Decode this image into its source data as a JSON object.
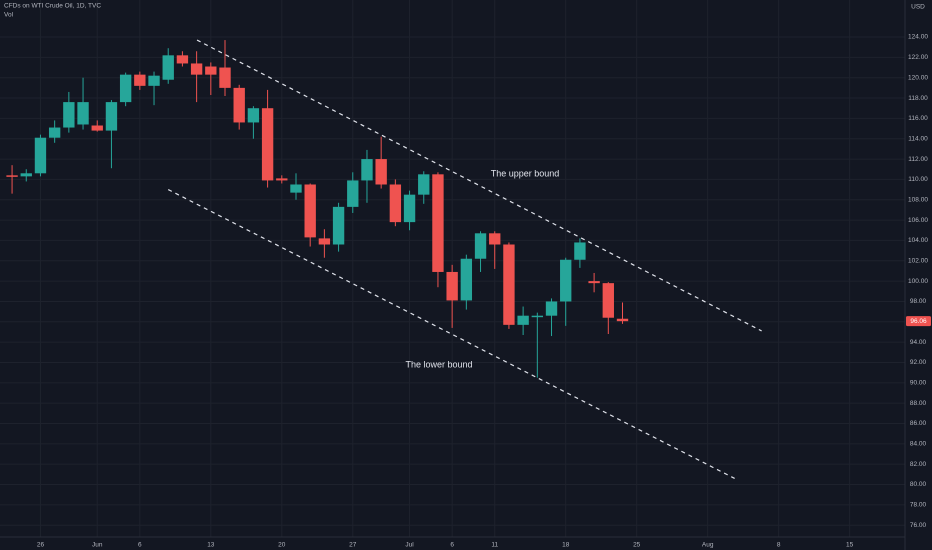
{
  "chart_data": {
    "type": "candlestick",
    "title": "CFDs on WTI Crude Oil, 1D, TVC",
    "subtitle": "Vol",
    "y_axis_label": "USD",
    "up_color": "#26a69a",
    "down_color": "#ef5350",
    "grid": true,
    "x": [
      0,
      1,
      2,
      3,
      4,
      5,
      6,
      7,
      8,
      9,
      10,
      11,
      12,
      13,
      14,
      15,
      16,
      17,
      18,
      19,
      20,
      21,
      22,
      23,
      24,
      25,
      26,
      27,
      28,
      29,
      30,
      31,
      32,
      33,
      34,
      35,
      36,
      37,
      38,
      39,
      40,
      41,
      42,
      43
    ],
    "open": [
      110.4,
      110.3,
      110.6,
      114.1,
      115.1,
      115.4,
      115.3,
      114.8,
      117.6,
      120.3,
      119.2,
      119.8,
      122.2,
      121.4,
      121.1,
      121.0,
      119.0,
      115.6,
      117.0,
      110.1,
      108.7,
      109.5,
      104.2,
      103.6,
      107.3,
      109.9,
      112.0,
      109.5,
      105.8,
      108.5,
      110.5,
      100.9,
      98.1,
      102.2,
      104.7,
      103.6,
      95.7,
      96.5,
      96.6,
      98.0,
      102.1,
      100.0,
      99.8,
      96.3
    ],
    "high": [
      111.4,
      111.0,
      114.4,
      115.8,
      118.6,
      120.0,
      115.8,
      117.8,
      120.5,
      120.6,
      120.6,
      122.9,
      122.6,
      122.6,
      121.5,
      123.7,
      119.3,
      117.2,
      118.8,
      110.4,
      110.6,
      109.6,
      105.1,
      107.7,
      110.7,
      112.9,
      114.2,
      110.0,
      108.9,
      110.8,
      110.7,
      101.6,
      102.6,
      104.9,
      104.9,
      103.8,
      97.5,
      96.9,
      98.3,
      102.3,
      104.2,
      100.8,
      99.9,
      97.9
    ],
    "low": [
      108.6,
      109.8,
      110.3,
      113.6,
      114.6,
      114.9,
      114.7,
      111.1,
      117.2,
      118.8,
      117.3,
      119.4,
      121.1,
      117.6,
      118.3,
      118.2,
      114.9,
      114.0,
      109.2,
      109.6,
      108.0,
      103.4,
      102.3,
      102.9,
      106.7,
      107.7,
      109.1,
      105.4,
      105.0,
      107.6,
      99.4,
      95.4,
      97.2,
      100.9,
      101.2,
      95.3,
      94.7,
      90.5,
      94.6,
      95.6,
      101.3,
      98.9,
      94.8,
      95.8
    ],
    "close": [
      110.3,
      110.6,
      114.1,
      115.1,
      117.6,
      117.6,
      114.8,
      117.6,
      120.3,
      119.2,
      120.2,
      122.2,
      121.4,
      120.3,
      120.3,
      119.0,
      115.6,
      117.0,
      109.9,
      109.9,
      109.5,
      104.3,
      103.6,
      107.3,
      109.9,
      112.0,
      109.5,
      105.8,
      108.5,
      110.5,
      100.9,
      98.1,
      102.2,
      104.7,
      103.6,
      95.7,
      96.6,
      96.6,
      98.0,
      102.1,
      103.8,
      99.8,
      96.4,
      96.06
    ],
    "last_price": {
      "value": 96.06,
      "label": "96.06"
    },
    "xlim": [
      -0.85,
      62.9
    ],
    "xticks": [
      {
        "value": 2,
        "label": "26"
      },
      {
        "value": 6,
        "label": "Jun"
      },
      {
        "value": 9,
        "label": "6"
      },
      {
        "value": 14,
        "label": "13"
      },
      {
        "value": 19,
        "label": "20"
      },
      {
        "value": 24,
        "label": "27"
      },
      {
        "value": 28,
        "label": "Jul"
      },
      {
        "value": 31,
        "label": "6"
      },
      {
        "value": 34,
        "label": "11"
      },
      {
        "value": 39,
        "label": "18"
      },
      {
        "value": 44,
        "label": "25"
      },
      {
        "value": 49,
        "label": "Aug"
      },
      {
        "value": 54,
        "label": "8"
      },
      {
        "value": 59,
        "label": "15"
      }
    ],
    "ylim": [
      74.84,
      127.64
    ],
    "yticks": [
      {
        "value": 76,
        "label": "76.00"
      },
      {
        "value": 78,
        "label": "78.00"
      },
      {
        "value": 80,
        "label": "80.00"
      },
      {
        "value": 82,
        "label": "82.00"
      },
      {
        "value": 84,
        "label": "84.00"
      },
      {
        "value": 86,
        "label": "86.00"
      },
      {
        "value": 88,
        "label": "88.00"
      },
      {
        "value": 90,
        "label": "90.00"
      },
      {
        "value": 92,
        "label": "92.00"
      },
      {
        "value": 94,
        "label": "94.00"
      },
      {
        "value": 96,
        "label": "96.00"
      },
      {
        "value": 98,
        "label": "98.00"
      },
      {
        "value": 100,
        "label": "100.00"
      },
      {
        "value": 102,
        "label": "102.00"
      },
      {
        "value": 104,
        "label": "104.00"
      },
      {
        "value": 106,
        "label": "106.00"
      },
      {
        "value": 108,
        "label": "108.00"
      },
      {
        "value": 110,
        "label": "110.00"
      },
      {
        "value": 112,
        "label": "112.00"
      },
      {
        "value": 114,
        "label": "114.00"
      },
      {
        "value": 116,
        "label": "116.00"
      },
      {
        "value": 118,
        "label": "118.00"
      },
      {
        "value": 120,
        "label": "120.00"
      },
      {
        "value": 122,
        "label": "122.00"
      },
      {
        "value": 124,
        "label": "124.00"
      }
    ],
    "trend_lines": [
      {
        "label": "The upper bound",
        "x": [
          13.03,
          52.8
        ],
        "y": [
          123.7,
          95.1
        ]
      },
      {
        "label": "The lower bound",
        "x": [
          11.0,
          50.9
        ],
        "y": [
          109.0,
          80.6
        ]
      }
    ]
  }
}
